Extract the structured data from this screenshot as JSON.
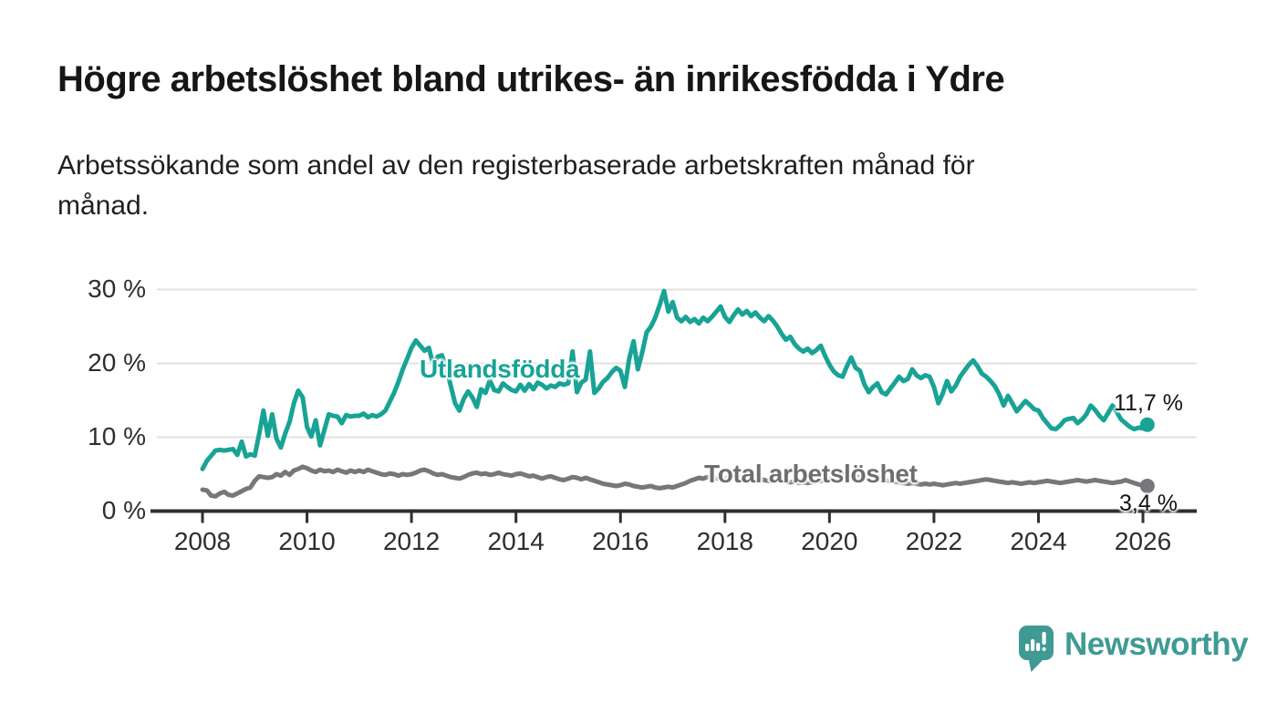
{
  "header": {
    "title": "Högre arbetslöshet bland utrikes- än inrikesfödda i Ydre",
    "subtitle_lines": [
      "Arbetssökande som andel av den registerbaserade arbetskraften månad för",
      "månad."
    ]
  },
  "chart_data": {
    "type": "line",
    "title": "Högre arbetslöshet bland utrikes- än inrikesfödda i Ydre",
    "subtitle": "Arbetssökande som andel av den registerbaserade arbetskraften månad för månad.",
    "x_unit": "month",
    "x_start_year": 2008,
    "xlim": [
      2007.0,
      2027.0
    ],
    "ylim": [
      0,
      32
    ],
    "grid": "horizontal",
    "legend_position": "inline-labels",
    "x_tick_labels": [
      "2008",
      "2010",
      "2012",
      "2014",
      "2016",
      "2018",
      "2020",
      "2022",
      "2024",
      "2026"
    ],
    "y_tick_labels": [
      "0 %",
      "10 %",
      "20 %",
      "30 %"
    ],
    "y_tick_values": [
      0,
      10,
      20,
      30
    ],
    "colors": {
      "accent_teal": "#18a396",
      "series_gray": "#77777b",
      "grid": "#e3e1de",
      "axis": "#2f2f2f"
    },
    "series": [
      {
        "name": "Utlandsfödda",
        "color": "#18a396",
        "end_label": "11,7 %",
        "end_value": 11.7,
        "values": [
          5.7,
          6.8,
          7.5,
          8.2,
          8.3,
          8.2,
          8.3,
          8.4,
          7.6,
          9.4,
          7.4,
          7.7,
          7.5,
          10.4,
          13.6,
          10.2,
          13.1,
          9.8,
          8.6,
          10.5,
          12.1,
          14.6,
          16.3,
          15.4,
          11.4,
          10.1,
          12.3,
          8.9,
          11.0,
          13.1,
          12.9,
          12.8,
          11.9,
          13.0,
          12.8,
          12.9,
          12.9,
          13.2,
          12.7,
          13.0,
          12.8,
          13.1,
          13.6,
          14.8,
          16.0,
          17.5,
          19.2,
          20.6,
          22.1,
          23.1,
          22.4,
          21.7,
          22.1,
          19.8,
          20.9,
          21.1,
          19.4,
          17.0,
          14.6,
          13.6,
          15.2,
          16.2,
          15.4,
          14.1,
          16.5,
          16.0,
          17.7,
          16.4,
          16.2,
          17.3,
          16.8,
          16.4,
          16.2,
          17.1,
          16.3,
          17.2,
          16.5,
          17.4,
          17.1,
          16.6,
          17.0,
          16.8,
          17.3,
          17.1,
          17.3,
          21.6,
          16.1,
          17.4,
          17.8,
          21.6,
          16.0,
          16.6,
          17.5,
          18.0,
          18.8,
          19.4,
          19.0,
          16.8,
          20.6,
          23.0,
          19.2,
          21.5,
          24.2,
          25.0,
          26.2,
          27.9,
          29.8,
          27.0,
          28.3,
          26.2,
          25.7,
          26.3,
          25.6,
          26.0,
          25.4,
          26.2,
          25.7,
          26.3,
          27.0,
          27.7,
          26.3,
          25.6,
          26.5,
          27.3,
          26.6,
          27.1,
          26.4,
          26.9,
          26.2,
          25.7,
          26.4,
          25.8,
          25.0,
          24.0,
          23.2,
          23.6,
          22.6,
          22.0,
          21.6,
          22.0,
          21.4,
          21.8,
          22.4,
          21.0,
          19.8,
          18.9,
          18.4,
          18.2,
          19.6,
          20.8,
          19.4,
          19.0,
          17.2,
          16.1,
          16.8,
          17.3,
          16.1,
          15.8,
          16.6,
          17.4,
          18.2,
          17.6,
          17.9,
          19.2,
          18.4,
          18.0,
          18.4,
          18.2,
          16.8,
          14.6,
          15.9,
          17.6,
          16.2,
          17.0,
          18.2,
          19.0,
          19.8,
          20.4,
          19.6,
          18.6,
          18.2,
          17.6,
          16.9,
          15.8,
          14.3,
          15.6,
          14.6,
          13.5,
          14.2,
          14.9,
          14.4,
          13.8,
          13.6,
          12.6,
          11.9,
          11.2,
          11.1,
          11.6,
          12.3,
          12.5,
          12.6,
          11.9,
          12.4,
          13.1,
          14.3,
          13.7,
          12.9,
          12.3,
          13.3,
          14.3,
          13.4,
          12.4,
          11.9,
          11.4,
          11.1,
          11.3,
          11.2,
          11.7
        ]
      },
      {
        "name": "Total arbetslöshet",
        "color": "#77777b",
        "end_label": "3,4 %",
        "end_value": 3.4,
        "values": [
          2.9,
          2.8,
          2.1,
          2.0,
          2.4,
          2.6,
          2.2,
          2.1,
          2.4,
          2.7,
          3.0,
          3.2,
          4.1,
          4.7,
          4.6,
          4.5,
          4.6,
          5.0,
          4.8,
          5.3,
          4.9,
          5.5,
          5.7,
          6.0,
          5.8,
          5.5,
          5.3,
          5.6,
          5.4,
          5.5,
          5.3,
          5.6,
          5.4,
          5.2,
          5.5,
          5.3,
          5.5,
          5.3,
          5.6,
          5.4,
          5.2,
          5.0,
          4.9,
          5.1,
          5.0,
          4.8,
          5.0,
          4.9,
          5.0,
          5.2,
          5.5,
          5.6,
          5.4,
          5.1,
          4.9,
          5.0,
          4.8,
          4.6,
          4.5,
          4.4,
          4.6,
          4.9,
          5.1,
          5.2,
          5.0,
          5.1,
          4.9,
          5.0,
          5.2,
          5.0,
          4.9,
          4.8,
          5.0,
          5.1,
          4.9,
          4.7,
          4.8,
          4.6,
          4.4,
          4.6,
          4.7,
          4.5,
          4.3,
          4.2,
          4.4,
          4.6,
          4.5,
          4.3,
          4.5,
          4.3,
          4.1,
          3.9,
          3.7,
          3.6,
          3.5,
          3.4,
          3.5,
          3.7,
          3.6,
          3.4,
          3.3,
          3.2,
          3.3,
          3.4,
          3.2,
          3.1,
          3.2,
          3.3,
          3.2,
          3.4,
          3.6,
          3.8,
          4.1,
          4.3,
          4.5,
          4.4,
          4.6,
          4.5,
          4.4,
          4.5,
          4.4,
          4.6,
          4.7,
          4.5,
          4.6,
          4.4,
          4.5,
          4.3,
          4.4,
          4.2,
          4.1,
          4.0,
          4.1,
          4.2,
          4.0,
          3.9,
          4.0,
          3.8,
          3.9,
          3.8,
          3.9,
          4.0,
          4.1,
          4.2,
          4.3,
          4.4,
          4.6,
          4.9,
          5.0,
          4.8,
          4.7,
          4.6,
          4.5,
          4.4,
          4.3,
          4.2,
          4.3,
          4.2,
          4.1,
          4.0,
          3.9,
          3.8,
          3.7,
          3.8,
          3.7,
          3.6,
          3.7,
          3.6,
          3.7,
          3.6,
          3.5,
          3.6,
          3.7,
          3.8,
          3.7,
          3.8,
          3.9,
          4.0,
          4.1,
          4.2,
          4.3,
          4.2,
          4.1,
          4.0,
          3.9,
          3.8,
          3.9,
          3.8,
          3.7,
          3.8,
          3.9,
          3.8,
          3.9,
          4.0,
          4.1,
          4.0,
          3.9,
          3.8,
          3.9,
          4.0,
          4.1,
          4.2,
          4.1,
          4.0,
          4.1,
          4.2,
          4.1,
          4.0,
          3.9,
          3.8,
          3.9,
          4.0,
          4.2,
          4.0,
          3.8,
          3.6,
          3.5,
          3.4
        ]
      }
    ]
  },
  "footer": {
    "brand": "Newsworthy"
  }
}
